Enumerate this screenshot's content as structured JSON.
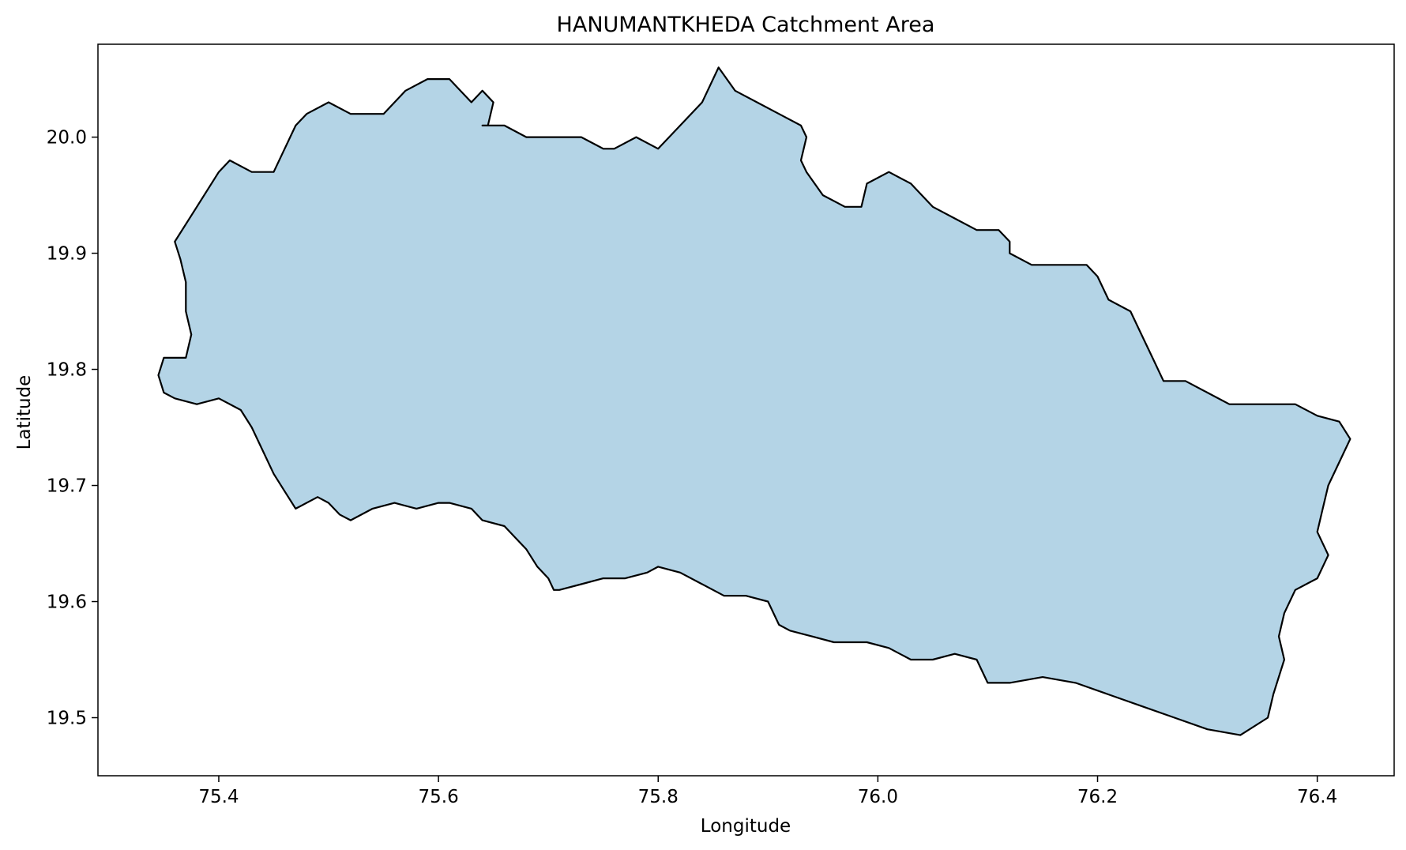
{
  "chart_data": {
    "type": "area",
    "title": "HANUMANTKHEDA Catchment Area",
    "xlabel": "Longitude",
    "ylabel": "Latitude",
    "xlim": [
      75.29,
      76.47
    ],
    "ylim": [
      19.45,
      20.08
    ],
    "x_ticks": [
      75.4,
      75.6,
      75.8,
      76.0,
      76.2,
      76.4
    ],
    "y_ticks": [
      19.5,
      19.6,
      19.7,
      19.8,
      19.9,
      20.0
    ],
    "x_tick_labels": [
      "75.4",
      "75.6",
      "75.8",
      "76.0",
      "76.2",
      "76.4"
    ],
    "y_tick_labels": [
      "19.5",
      "19.6",
      "19.7",
      "19.8",
      "19.9",
      "20.0"
    ],
    "grid": false,
    "fill_color": "#b4d4e6",
    "edge_color": "#000000",
    "series": [
      {
        "polygon": [
          [
            75.36,
            19.91
          ],
          [
            75.38,
            19.94
          ],
          [
            75.4,
            19.97
          ],
          [
            75.41,
            19.98
          ],
          [
            75.43,
            19.97
          ],
          [
            75.45,
            19.97
          ],
          [
            75.46,
            19.99
          ],
          [
            75.47,
            20.01
          ],
          [
            75.48,
            20.02
          ],
          [
            75.5,
            20.03
          ],
          [
            75.52,
            20.02
          ],
          [
            75.55,
            20.02
          ],
          [
            75.57,
            20.04
          ],
          [
            75.59,
            20.05
          ],
          [
            75.61,
            20.05
          ],
          [
            75.63,
            20.03
          ],
          [
            75.64,
            20.04
          ],
          [
            75.65,
            20.03
          ],
          [
            75.645,
            20.01
          ],
          [
            75.64,
            20.01
          ],
          [
            75.66,
            20.01
          ],
          [
            75.68,
            20.0
          ],
          [
            75.71,
            20.0
          ],
          [
            75.73,
            20.0
          ],
          [
            75.75,
            19.99
          ],
          [
            75.76,
            19.99
          ],
          [
            75.78,
            20.0
          ],
          [
            75.8,
            19.99
          ],
          [
            75.82,
            20.01
          ],
          [
            75.84,
            20.03
          ],
          [
            75.855,
            20.06
          ],
          [
            75.87,
            20.04
          ],
          [
            75.89,
            20.03
          ],
          [
            75.91,
            20.02
          ],
          [
            75.93,
            20.01
          ],
          [
            75.935,
            20.0
          ],
          [
            75.93,
            19.98
          ],
          [
            75.935,
            19.97
          ],
          [
            75.95,
            19.95
          ],
          [
            75.97,
            19.94
          ],
          [
            75.985,
            19.94
          ],
          [
            75.99,
            19.96
          ],
          [
            76.01,
            19.97
          ],
          [
            76.03,
            19.96
          ],
          [
            76.05,
            19.94
          ],
          [
            76.07,
            19.93
          ],
          [
            76.09,
            19.92
          ],
          [
            76.11,
            19.92
          ],
          [
            76.12,
            19.91
          ],
          [
            76.12,
            19.9
          ],
          [
            76.14,
            19.89
          ],
          [
            76.16,
            19.89
          ],
          [
            76.18,
            19.89
          ],
          [
            76.19,
            19.89
          ],
          [
            76.2,
            19.88
          ],
          [
            76.21,
            19.86
          ],
          [
            76.23,
            19.85
          ],
          [
            76.24,
            19.83
          ],
          [
            76.25,
            19.81
          ],
          [
            76.26,
            19.79
          ],
          [
            76.28,
            19.79
          ],
          [
            76.3,
            19.78
          ],
          [
            76.32,
            19.77
          ],
          [
            76.34,
            19.77
          ],
          [
            76.36,
            19.77
          ],
          [
            76.38,
            19.77
          ],
          [
            76.4,
            19.76
          ],
          [
            76.42,
            19.755
          ],
          [
            76.43,
            19.74
          ],
          [
            76.42,
            19.72
          ],
          [
            76.41,
            19.7
          ],
          [
            76.405,
            19.68
          ],
          [
            76.4,
            19.66
          ],
          [
            76.41,
            19.64
          ],
          [
            76.4,
            19.62
          ],
          [
            76.38,
            19.61
          ],
          [
            76.37,
            19.59
          ],
          [
            76.365,
            19.57
          ],
          [
            76.37,
            19.55
          ],
          [
            76.36,
            19.52
          ],
          [
            76.355,
            19.5
          ],
          [
            76.33,
            19.485
          ],
          [
            76.3,
            19.49
          ],
          [
            76.27,
            19.5
          ],
          [
            76.24,
            19.51
          ],
          [
            76.21,
            19.52
          ],
          [
            76.18,
            19.53
          ],
          [
            76.15,
            19.535
          ],
          [
            76.12,
            19.53
          ],
          [
            76.1,
            19.53
          ],
          [
            76.09,
            19.55
          ],
          [
            76.07,
            19.555
          ],
          [
            76.05,
            19.55
          ],
          [
            76.03,
            19.55
          ],
          [
            76.01,
            19.56
          ],
          [
            75.99,
            19.565
          ],
          [
            75.96,
            19.565
          ],
          [
            75.94,
            19.57
          ],
          [
            75.92,
            19.575
          ],
          [
            75.91,
            19.58
          ],
          [
            75.9,
            19.6
          ],
          [
            75.88,
            19.605
          ],
          [
            75.86,
            19.605
          ],
          [
            75.84,
            19.615
          ],
          [
            75.82,
            19.625
          ],
          [
            75.8,
            19.63
          ],
          [
            75.79,
            19.625
          ],
          [
            75.77,
            19.62
          ],
          [
            75.75,
            19.62
          ],
          [
            75.73,
            19.615
          ],
          [
            75.71,
            19.61
          ],
          [
            75.705,
            19.61
          ],
          [
            75.7,
            19.62
          ],
          [
            75.69,
            19.63
          ],
          [
            75.68,
            19.645
          ],
          [
            75.67,
            19.655
          ],
          [
            75.66,
            19.665
          ],
          [
            75.64,
            19.67
          ],
          [
            75.63,
            19.68
          ],
          [
            75.61,
            19.685
          ],
          [
            75.6,
            19.685
          ],
          [
            75.58,
            19.68
          ],
          [
            75.56,
            19.685
          ],
          [
            75.54,
            19.68
          ],
          [
            75.52,
            19.67
          ],
          [
            75.51,
            19.675
          ],
          [
            75.5,
            19.685
          ],
          [
            75.49,
            19.69
          ],
          [
            75.47,
            19.68
          ],
          [
            75.46,
            19.695
          ],
          [
            75.45,
            19.71
          ],
          [
            75.44,
            19.73
          ],
          [
            75.43,
            19.75
          ],
          [
            75.42,
            19.765
          ],
          [
            75.4,
            19.775
          ],
          [
            75.38,
            19.77
          ],
          [
            75.36,
            19.775
          ],
          [
            75.35,
            19.78
          ],
          [
            75.345,
            19.795
          ],
          [
            75.35,
            19.81
          ],
          [
            75.37,
            19.81
          ],
          [
            75.375,
            19.83
          ],
          [
            75.37,
            19.85
          ],
          [
            75.37,
            19.875
          ],
          [
            75.365,
            19.895
          ]
        ]
      }
    ]
  }
}
